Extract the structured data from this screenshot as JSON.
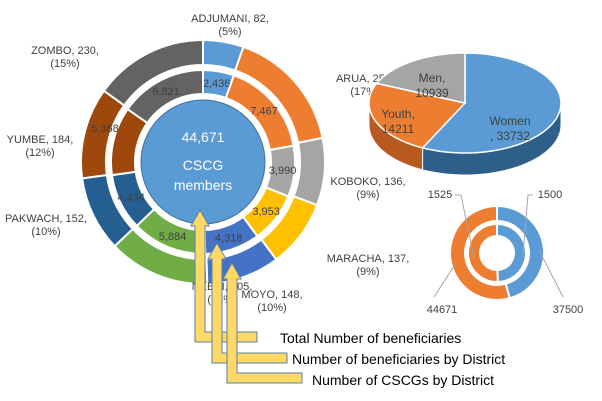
{
  "chart_data": [
    {
      "type": "donut",
      "center_text": {
        "value": "44,671",
        "label_line1": "CSCG",
        "label_line2": "members"
      },
      "categories": [
        "ADJUMANI",
        "ARUA",
        "KOBOKO",
        "MARACHA",
        "MOYO",
        "NEBBI",
        "PAKWACH",
        "YUMBE",
        "ZOMBO"
      ],
      "colors": [
        "#5B9BD5",
        "#ED7D31",
        "#A5A5A5",
        "#FFC000",
        "#4472C4",
        "#70AD47",
        "#255E91",
        "#9E480E",
        "#636363"
      ],
      "series": [
        {
          "name": "Number of CSCGs by District",
          "values": [
            82,
            251,
            136,
            137,
            148,
            205,
            152,
            184,
            230
          ],
          "labels": [
            "ADJUMANI, 82,|(5%)",
            "ARUA, 251,|(17%)",
            "KOBOKO, 136,|(9%)",
            "MARACHA, 137,|(9%)",
            "MOYO, 148,|(10%)",
            "NEBBI, 205,|(13%)",
            "PAKWACH, 152,|(10%)",
            "YUMBE, 184,|(12%)",
            "ZOMBO, 230,|(15%)"
          ]
        },
        {
          "name": "Number of beneficiaries by District",
          "values": [
            2436,
            7467,
            3990,
            3953,
            4318,
            5884,
            4434,
            5368,
            6821
          ],
          "labels": [
            "2,436",
            "7,467",
            "3,990",
            "3,953",
            "4,318",
            "5,884",
            "4,434",
            "5,368",
            "6,821"
          ]
        }
      ]
    },
    {
      "type": "pie",
      "style": "3d",
      "categories": [
        "Women",
        "Youth",
        "Men"
      ],
      "values": [
        33732,
        14211,
        10939
      ],
      "labels": [
        ", 33732",
        "14211",
        "10939"
      ],
      "colors": [
        "#5B9BD5",
        "#ED7D31",
        "#A5A5A5"
      ]
    },
    {
      "type": "donut",
      "colors": [
        "#5B9BD5",
        "#ED7D31"
      ],
      "series": [
        {
          "values": [
            37500,
            44671
          ],
          "labels": [
            "37500",
            "44671"
          ]
        },
        {
          "values": [
            1500,
            1525
          ],
          "labels": [
            "1500",
            "1525"
          ]
        }
      ]
    }
  ],
  "legend": {
    "items": [
      "Total Number of beneficiaries",
      "Number of beneficiaries by District",
      "Number of CSCGs by District"
    ],
    "arrow_color": "#FFD966"
  }
}
